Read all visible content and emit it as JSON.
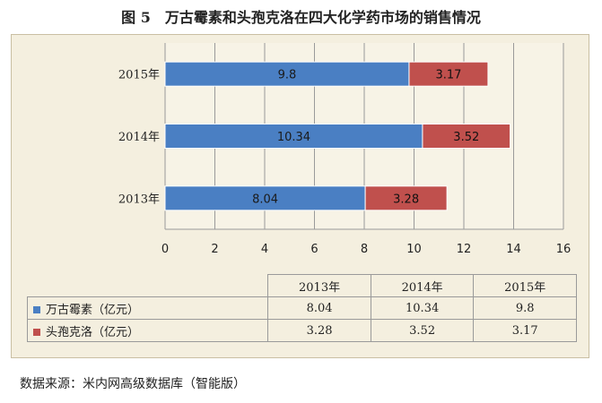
{
  "title": "图 5　万古霉素和头孢克洛在四大化学药市场的销售情况",
  "source": "数据来源：米内网高级数据库（智能版）",
  "colors": {
    "series1": "#4a7fc3",
    "series2": "#c0504d"
  },
  "chart_data": {
    "type": "bar",
    "orientation": "horizontal",
    "stacked": true,
    "categories": [
      "2015年",
      "2014年",
      "2013年"
    ],
    "series": [
      {
        "name": "万古霉素（亿元）",
        "values": [
          9.8,
          10.34,
          8.04
        ]
      },
      {
        "name": "头孢克洛（亿元）",
        "values": [
          3.17,
          3.52,
          3.28
        ]
      }
    ],
    "xlim": [
      0,
      16
    ],
    "xticks": [
      0,
      2,
      4,
      6,
      8,
      10,
      12,
      14,
      16
    ],
    "grid": "vertical",
    "legend": "data-table"
  },
  "table": {
    "headers": [
      "2013年",
      "2014年",
      "2015年"
    ],
    "rows": [
      {
        "label": "万古霉素（亿元）",
        "values": [
          "8.04",
          "10.34",
          "9.8"
        ]
      },
      {
        "label": "头孢克洛（亿元）",
        "values": [
          "3.28",
          "3.52",
          "3.17"
        ]
      }
    ]
  }
}
